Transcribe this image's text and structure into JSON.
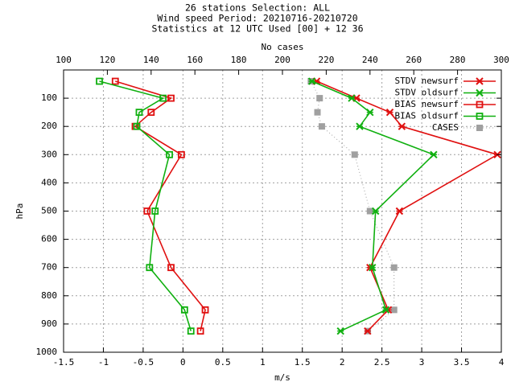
{
  "chart_data": {
    "type": "line",
    "title_lines": [
      "26 stations Selection: ALL",
      "Wind speed  Period: 20210716-20210720",
      "Statistics at 12 UTC  Used [00] + 12 36"
    ],
    "xlabel": "m/s",
    "x2label": "No cases",
    "ylabel": "hPa",
    "xlim": [
      -1.5,
      4
    ],
    "x2lim": [
      100,
      300
    ],
    "ylim": [
      1000,
      0
    ],
    "x_ticks": [
      "-1.5",
      "-1",
      "-0.5",
      "0",
      "0.5",
      "1",
      "1.5",
      "2",
      "2.5",
      "3",
      "3.5",
      "4"
    ],
    "x2_ticks": [
      "100",
      "120",
      "140",
      "160",
      "180",
      "200",
      "220",
      "240",
      "260",
      "280",
      "300"
    ],
    "y_ticks": [
      "100",
      "200",
      "300",
      "400",
      "500",
      "600",
      "700",
      "800",
      "900",
      "1000"
    ],
    "grid": true,
    "legend_position": "top-right",
    "series": [
      {
        "name": "STDV newsurf",
        "axis": "x",
        "color": "#e01010",
        "marker": "x-star",
        "dashed": false,
        "points": [
          [
            1.68,
            40
          ],
          [
            2.18,
            100
          ],
          [
            2.6,
            150
          ],
          [
            2.75,
            200
          ],
          [
            3.95,
            300
          ],
          [
            2.72,
            500
          ],
          [
            2.35,
            700
          ],
          [
            2.58,
            850
          ],
          [
            2.32,
            925
          ]
        ]
      },
      {
        "name": "STDV oldsurf",
        "axis": "x",
        "color": "#10b010",
        "marker": "x-star",
        "dashed": false,
        "points": [
          [
            1.62,
            40
          ],
          [
            2.12,
            100
          ],
          [
            2.35,
            150
          ],
          [
            2.22,
            200
          ],
          [
            3.15,
            300
          ],
          [
            2.42,
            500
          ],
          [
            2.38,
            700
          ],
          [
            2.55,
            850
          ],
          [
            1.98,
            925
          ]
        ]
      },
      {
        "name": "BIAS newsurf",
        "axis": "x",
        "color": "#e01010",
        "marker": "square",
        "dashed": false,
        "points": [
          [
            -0.85,
            40
          ],
          [
            -0.15,
            100
          ],
          [
            -0.4,
            150
          ],
          [
            -0.6,
            200
          ],
          [
            -0.02,
            300
          ],
          [
            -0.45,
            500
          ],
          [
            -0.15,
            700
          ],
          [
            0.28,
            850
          ],
          [
            0.22,
            925
          ]
        ]
      },
      {
        "name": "BIAS oldsurf",
        "axis": "x",
        "color": "#10b010",
        "marker": "square",
        "dashed": false,
        "points": [
          [
            -1.05,
            40
          ],
          [
            -0.25,
            100
          ],
          [
            -0.55,
            150
          ],
          [
            -0.58,
            200
          ],
          [
            -0.17,
            300
          ],
          [
            -0.35,
            500
          ],
          [
            -0.42,
            700
          ],
          [
            0.02,
            850
          ],
          [
            0.1,
            925
          ]
        ]
      },
      {
        "name": "CASES",
        "axis": "x2",
        "color": "#a0a0a0",
        "marker": "filled-square",
        "dashed": true,
        "points": [
          [
            213,
            40
          ],
          [
            217,
            100
          ],
          [
            216,
            150
          ],
          [
            218,
            200
          ],
          [
            233,
            300
          ],
          [
            240,
            500
          ],
          [
            251,
            700
          ],
          [
            251,
            850
          ],
          [
            239,
            925
          ]
        ]
      }
    ]
  }
}
